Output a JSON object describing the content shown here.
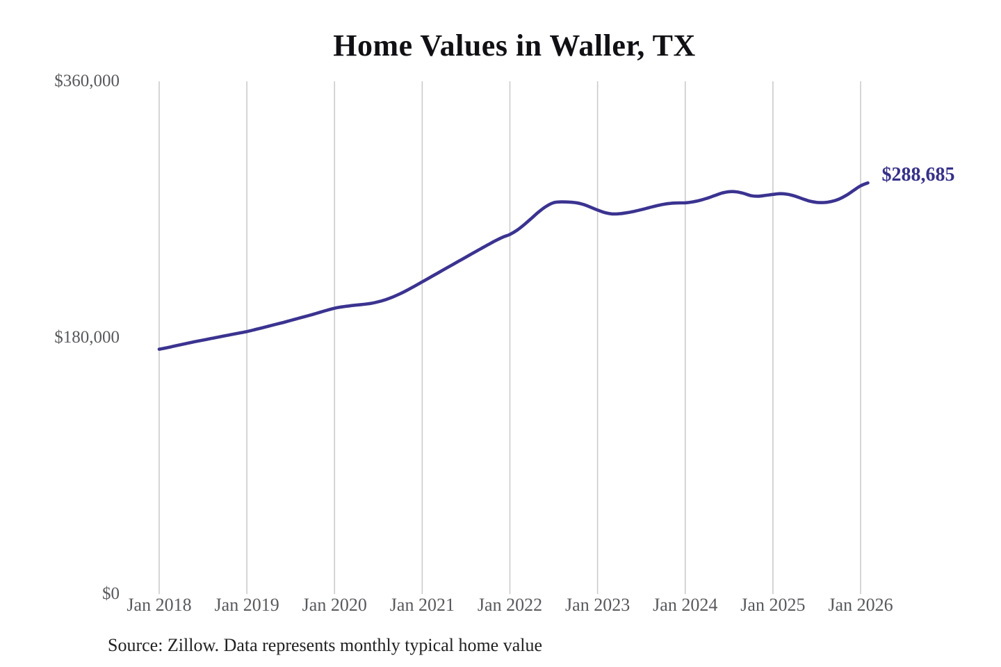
{
  "chart_data": {
    "type": "line",
    "title": "Home Values in Waller, TX",
    "xlabel": "",
    "ylabel": "",
    "ylim": [
      0,
      360000
    ],
    "grid": "vertical-only",
    "legend": "none",
    "x_ticks": [
      "Jan 2018",
      "Jan 2019",
      "Jan 2020",
      "Jan 2021",
      "Jan 2022",
      "Jan 2023",
      "Jan 2024",
      "Jan 2025",
      "Jan 2026"
    ],
    "y_ticks": [
      {
        "label": "$360,000",
        "value": 360000
      },
      {
        "label": "$180,000",
        "value": 180000
      },
      {
        "label": "$0",
        "value": 0
      }
    ],
    "series": [
      {
        "name": "Monthly typical home value",
        "start": "Jan 2018",
        "end": "Feb 2026",
        "frequency": "monthly",
        "values": [
          171900,
          172900,
          174000,
          175100,
          176200,
          177300,
          178300,
          179300,
          180300,
          181300,
          182300,
          183300,
          184300,
          185500,
          186800,
          188100,
          189400,
          190700,
          192100,
          193500,
          194900,
          196300,
          197800,
          199300,
          200700,
          201600,
          202300,
          202900,
          203400,
          204100,
          205200,
          206700,
          208600,
          210900,
          213500,
          216300,
          219200,
          222100,
          225000,
          227900,
          230800,
          233700,
          236600,
          239500,
          242400,
          245200,
          248000,
          250500,
          252500,
          255500,
          259500,
          264000,
          268500,
          272300,
          274800,
          275300,
          275200,
          274800,
          273600,
          271700,
          269600,
          267800,
          266900,
          267000,
          267700,
          268700,
          269900,
          271200,
          272500,
          273600,
          274300,
          274600,
          274700,
          275300,
          276400,
          277900,
          279700,
          281500,
          282500,
          282400,
          281300,
          279700,
          279300,
          279900,
          280600,
          281100,
          280700,
          279400,
          277600,
          275900,
          275000,
          274900,
          275600,
          277200,
          279800,
          283200,
          286600,
          288685
        ]
      }
    ],
    "end_value": 288685,
    "end_value_label": "$288,685"
  },
  "source_note": "Source: Zillow. Data represents monthly typical home value",
  "colors": {
    "line": "#3b3390",
    "grid": "#cbcbcb",
    "axis_text": "#58595d",
    "title_text": "#111115",
    "end_label_text": "#363089",
    "source_text": "#222222",
    "background": "#ffffff"
  }
}
